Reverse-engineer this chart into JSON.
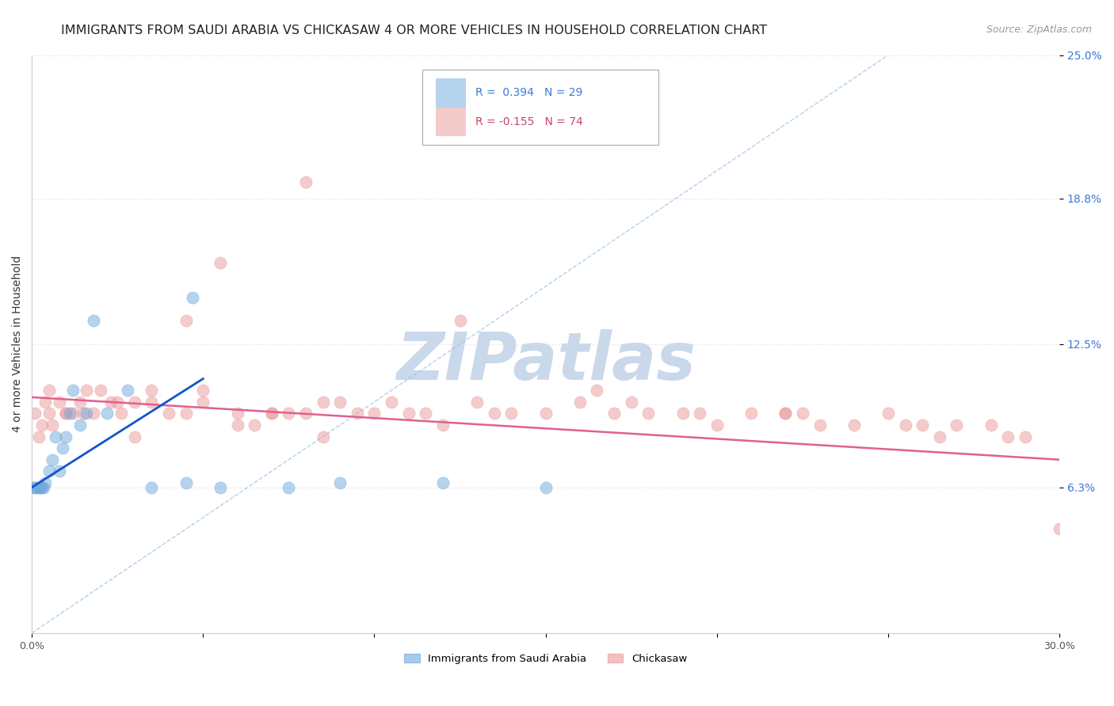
{
  "title": "IMMIGRANTS FROM SAUDI ARABIA VS CHICKASAW 4 OR MORE VEHICLES IN HOUSEHOLD CORRELATION CHART",
  "source": "Source: ZipAtlas.com",
  "ylabel": "4 or more Vehicles in Household",
  "xlim": [
    0.0,
    30.0
  ],
  "ylim": [
    0.0,
    25.0
  ],
  "xtick_positions": [
    0.0,
    5.0,
    10.0,
    15.0,
    20.0,
    25.0,
    30.0
  ],
  "xticklabels": [
    "0.0%",
    "",
    "",
    "",
    "",
    "",
    "30.0%"
  ],
  "ytick_positions": [
    6.3,
    12.5,
    18.8,
    25.0
  ],
  "ytick_labels": [
    "6.3%",
    "12.5%",
    "18.8%",
    "25.0%"
  ],
  "legend_blue_label": "R =  0.394   N = 29",
  "legend_pink_label": "R = -0.155   N = 74",
  "legend_label_blue": "Immigrants from Saudi Arabia",
  "legend_label_pink": "Chickasaw",
  "blue_color": "#6fa8dc",
  "blue_edge_color": "#6fa8dc",
  "pink_color": "#ea9999",
  "pink_edge_color": "#ea9999",
  "blue_line_color": "#1155cc",
  "pink_line_color": "#e06090",
  "ref_line_color": "#9fc5e8",
  "scatter_alpha": 0.5,
  "scatter_size": 120,
  "blue_x": [
    0.05,
    0.1,
    0.15,
    0.2,
    0.25,
    0.3,
    0.35,
    0.4,
    0.5,
    0.6,
    0.7,
    0.8,
    0.9,
    1.0,
    1.1,
    1.2,
    1.4,
    1.6,
    1.8,
    2.2,
    2.8,
    3.5,
    4.5,
    4.7,
    5.5,
    7.5,
    9.0,
    12.0,
    15.0
  ],
  "blue_y": [
    6.3,
    6.3,
    6.3,
    6.3,
    6.3,
    6.3,
    6.3,
    6.5,
    7.0,
    7.5,
    8.5,
    7.0,
    8.0,
    8.5,
    9.5,
    10.5,
    9.0,
    9.5,
    13.5,
    9.5,
    10.5,
    6.3,
    6.5,
    14.5,
    6.3,
    6.3,
    6.5,
    6.5,
    6.3
  ],
  "pink_x": [
    0.1,
    0.2,
    0.3,
    0.4,
    0.5,
    0.6,
    0.8,
    1.0,
    1.2,
    1.4,
    1.6,
    1.8,
    2.0,
    2.3,
    2.6,
    3.0,
    3.5,
    4.0,
    4.5,
    5.0,
    5.5,
    6.0,
    6.5,
    7.0,
    7.5,
    8.0,
    8.5,
    9.5,
    10.0,
    10.5,
    11.5,
    12.0,
    13.0,
    14.0,
    15.0,
    16.0,
    17.0,
    18.0,
    19.0,
    20.0,
    21.0,
    22.0,
    23.0,
    24.0,
    25.0,
    26.0,
    27.0,
    28.0,
    28.5,
    29.0,
    30.0,
    0.5,
    1.0,
    1.5,
    2.5,
    3.5,
    5.0,
    7.0,
    9.0,
    11.0,
    13.5,
    16.5,
    19.5,
    22.5,
    25.5,
    4.5,
    8.0,
    12.5,
    17.5,
    22.0,
    26.5,
    8.5,
    3.0,
    6.0
  ],
  "pink_y": [
    9.5,
    8.5,
    9.0,
    10.0,
    9.5,
    9.0,
    10.0,
    9.5,
    9.5,
    10.0,
    10.5,
    9.5,
    10.5,
    10.0,
    9.5,
    10.0,
    10.0,
    9.5,
    9.5,
    10.0,
    16.0,
    9.5,
    9.0,
    9.5,
    9.5,
    9.5,
    10.0,
    9.5,
    9.5,
    10.0,
    9.5,
    9.0,
    10.0,
    9.5,
    9.5,
    10.0,
    9.5,
    9.5,
    9.5,
    9.0,
    9.5,
    9.5,
    9.0,
    9.0,
    9.5,
    9.0,
    9.0,
    9.0,
    8.5,
    8.5,
    4.5,
    10.5,
    9.5,
    9.5,
    10.0,
    10.5,
    10.5,
    9.5,
    10.0,
    9.5,
    9.5,
    10.5,
    9.5,
    9.5,
    9.0,
    13.5,
    19.5,
    13.5,
    10.0,
    9.5,
    8.5,
    8.5,
    8.5,
    9.0
  ],
  "blue_regr_x0": 0.0,
  "blue_regr_y0": 6.3,
  "blue_regr_x1": 5.0,
  "blue_regr_y1": 11.0,
  "pink_regr_x0": 0.0,
  "pink_regr_y0": 10.2,
  "pink_regr_x1": 30.0,
  "pink_regr_y1": 7.5,
  "diag_x0": 0.0,
  "diag_y0": 0.0,
  "diag_x1": 25.0,
  "diag_y1": 25.0,
  "watermark": "ZIPatlas",
  "watermark_color": "#c9d8ea",
  "background_color": "#ffffff",
  "grid_color": "#dddddd",
  "title_fontsize": 11.5,
  "source_fontsize": 9,
  "axis_label_fontsize": 10,
  "tick_fontsize": 9,
  "legend_fontsize": 10
}
